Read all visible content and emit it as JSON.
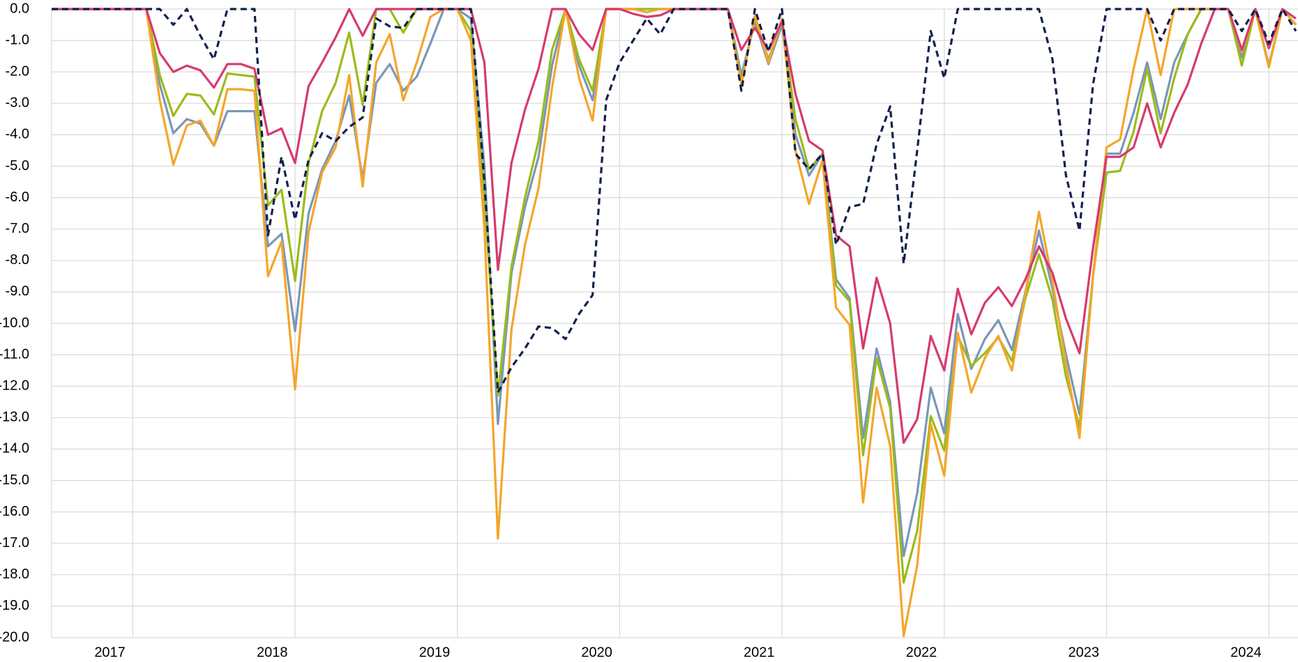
{
  "chart_data": {
    "type": "line",
    "categories": [
      null,
      null,
      null,
      null,
      "2017",
      null,
      null,
      null,
      null,
      null,
      null,
      null,
      null,
      null,
      null,
      null,
      "2018",
      null,
      null,
      null,
      null,
      null,
      null,
      null,
      null,
      null,
      null,
      null,
      "2019",
      null,
      null,
      null,
      null,
      null,
      null,
      null,
      null,
      null,
      null,
      null,
      "2020",
      null,
      null,
      null,
      null,
      null,
      null,
      null,
      null,
      null,
      null,
      null,
      "2021",
      null,
      null,
      null,
      null,
      null,
      null,
      null,
      null,
      null,
      null,
      null,
      "2022",
      null,
      null,
      null,
      null,
      null,
      null,
      null,
      null,
      null,
      null,
      null,
      "2023",
      null,
      null,
      null,
      null,
      null,
      null,
      null,
      null,
      null,
      null,
      null,
      "2024",
      null,
      null,
      null,
      null
    ],
    "ylim": [
      -20,
      0
    ],
    "yticks": [
      {
        "value": 0,
        "label": "0.0"
      },
      {
        "value": -1,
        "label": "-1.0"
      },
      {
        "value": -2,
        "label": "-2.0"
      },
      {
        "value": -3,
        "label": "-3.0"
      },
      {
        "value": -4,
        "label": "-4.0"
      },
      {
        "value": -5,
        "label": "-5.0"
      },
      {
        "value": -6,
        "label": "-6.0"
      },
      {
        "value": -7,
        "label": "-7.0"
      },
      {
        "value": -8,
        "label": "-8.0"
      },
      {
        "value": -9,
        "label": "-9.0"
      },
      {
        "value": -10,
        "label": "-10.0"
      },
      {
        "value": -11,
        "label": "-11.0"
      },
      {
        "value": -12,
        "label": "-12.0"
      },
      {
        "value": -13,
        "label": "-13.0"
      },
      {
        "value": -14,
        "label": "-14.0"
      },
      {
        "value": -15,
        "label": "-15.0"
      },
      {
        "value": -16,
        "label": "-16.0"
      },
      {
        "value": -17,
        "label": "-17.0"
      },
      {
        "value": -18,
        "label": "-18.0"
      },
      {
        "value": -19,
        "label": "-19.0"
      },
      {
        "value": -20,
        "label": "-20.0"
      }
    ],
    "grid": true,
    "series": [
      {
        "color": "#7b96b8",
        "dashed": false,
        "values": [
          0,
          0,
          0,
          0,
          0,
          0,
          0,
          0,
          -2.4,
          -3.95,
          -3.5,
          -3.65,
          -4.35,
          -3.25,
          -3.25,
          -3.25,
          -7.55,
          -7.15,
          -10.25,
          -6.5,
          -5.1,
          -4.2,
          -2.75,
          -5.4,
          -2.35,
          -1.75,
          -2.6,
          -2.15,
          -1.1,
          0,
          0,
          -0.3,
          -5,
          -13.2,
          -8.4,
          -6.3,
          -4.7,
          -1.8,
          0,
          -1.8,
          -2.9,
          0,
          0,
          0,
          0,
          0,
          0,
          0,
          0,
          0,
          0,
          -2.1,
          -0.4,
          -1.75,
          -0.5,
          -4,
          -5.3,
          -4.6,
          -8.6,
          -9.2,
          -13.65,
          -10.8,
          -12.5,
          -17.4,
          -15.4,
          -12.05,
          -13.5,
          -9.7,
          -11.45,
          -10.5,
          -9.9,
          -10.85,
          -9,
          -7.05,
          -8.9,
          -11,
          -12.9,
          -8.5,
          -4.6,
          -4.6,
          -3.3,
          -1.7,
          -3.5,
          -1.7,
          -0.8,
          0,
          0,
          0,
          -1.55,
          0,
          -1.8,
          0,
          -0.5
        ]
      },
      {
        "color": "#9bbb1a",
        "dashed": false,
        "values": [
          0,
          0,
          0,
          0,
          0,
          0,
          0,
          0,
          -2.1,
          -3.4,
          -2.7,
          -2.75,
          -3.35,
          -2.05,
          -2.1,
          -2.15,
          -6.25,
          -5.75,
          -8.65,
          -4.9,
          -3.25,
          -2.35,
          -0.75,
          -3.05,
          0,
          0,
          -0.75,
          0,
          0,
          0,
          0,
          -0.7,
          -6,
          -12.3,
          -8.2,
          -6,
          -4.2,
          -1.3,
          0,
          -1.6,
          -2.6,
          0,
          0,
          0,
          0,
          0,
          0,
          0,
          0,
          0,
          0,
          -2.3,
          -0.3,
          -1.6,
          -0.4,
          -3.5,
          -5.1,
          -4.6,
          -8.8,
          -9.3,
          -14.2,
          -11.1,
          -12.7,
          -18.25,
          -16.6,
          -12.95,
          -14.05,
          -10.4,
          -11.35,
          -10.95,
          -10.45,
          -11.2,
          -9.2,
          -7.8,
          -9.25,
          -11.7,
          -13.3,
          -8.5,
          -5.2,
          -5.15,
          -3.9,
          -1.9,
          -3.95,
          -2.2,
          -0.8,
          0,
          0,
          0,
          -1.8,
          0,
          -1.85,
          0,
          -0.5
        ]
      },
      {
        "color": "#f5a52a",
        "dashed": false,
        "values": [
          0,
          0,
          0,
          0,
          0,
          0,
          0,
          0,
          -2.9,
          -4.95,
          -3.7,
          -3.55,
          -4.35,
          -2.55,
          -2.55,
          -2.6,
          -8.5,
          -7.4,
          -12.1,
          -7.1,
          -5.2,
          -4.4,
          -2.1,
          -5.65,
          -1.7,
          -0.8,
          -2.9,
          -1.7,
          -0.25,
          0,
          0,
          -1,
          -7,
          -16.85,
          -10.2,
          -7.5,
          -5.7,
          -2.5,
          0,
          -2.2,
          -3.55,
          0,
          0,
          0,
          -0.1,
          0,
          0,
          0,
          0,
          0,
          0,
          -2.4,
          -0.2,
          -1.7,
          -0.3,
          -4.5,
          -6.2,
          -4.8,
          -9.5,
          -10.05,
          -15.7,
          -12.05,
          -13.9,
          -19.95,
          -17.7,
          -13.2,
          -14.85,
          -10.3,
          -12.2,
          -11.1,
          -10.4,
          -11.5,
          -9.05,
          -6.45,
          -8.65,
          -11.3,
          -13.65,
          -8.5,
          -4.4,
          -4.15,
          -1.9,
          0,
          -2.1,
          0,
          0,
          0,
          0,
          0,
          -1.35,
          -0.05,
          -1.85,
          0,
          -0.5
        ]
      },
      {
        "color": "#d63a6e",
        "dashed": false,
        "values": [
          0,
          0,
          0,
          0,
          0,
          0,
          0,
          0,
          -1.4,
          -2,
          -1.8,
          -1.95,
          -2.5,
          -1.75,
          -1.75,
          -1.9,
          -4,
          -3.8,
          -4.9,
          -2.45,
          -1.7,
          -0.9,
          0,
          -0.85,
          0,
          0,
          0,
          0,
          0,
          0,
          0,
          0,
          -1.7,
          -8.3,
          -4.9,
          -3.2,
          -1.9,
          0,
          0,
          -0.8,
          -1.3,
          0,
          0,
          -0.15,
          -0.25,
          -0.2,
          0,
          0,
          0,
          0,
          0,
          -1.3,
          -0.6,
          -1.3,
          -0.4,
          -2.7,
          -4.2,
          -4.5,
          -7.2,
          -7.55,
          -10.8,
          -8.55,
          -10,
          -13.8,
          -13.05,
          -10.4,
          -11.5,
          -8.9,
          -10.35,
          -9.35,
          -8.85,
          -9.45,
          -8.6,
          -7.55,
          -8.4,
          -9.85,
          -10.95,
          -7.6,
          -4.7,
          -4.7,
          -4.4,
          -3,
          -4.4,
          -3.3,
          -2.4,
          -1.1,
          0,
          0,
          -1.3,
          0,
          -1.25,
          0,
          -0.3
        ]
      },
      {
        "color": "#10204f",
        "dashed": true,
        "values": [
          0,
          0,
          0,
          0,
          0,
          0,
          0,
          0,
          0,
          -0.5,
          0,
          -0.85,
          -1.6,
          0,
          0,
          0,
          -7.2,
          -4.7,
          -6.7,
          -4.8,
          -3.95,
          -4.2,
          -3.75,
          -3.45,
          -0.3,
          -0.55,
          -0.6,
          0,
          0,
          0,
          0,
          0,
          -5.5,
          -12.2,
          -11.4,
          -10.8,
          -10.1,
          -10.15,
          -10.5,
          -9.7,
          -9.1,
          -2.9,
          -1.7,
          -1,
          -0.3,
          -0.8,
          0,
          0,
          0,
          0,
          0,
          -2.6,
          0,
          -1.35,
          0,
          -4.6,
          -5.1,
          -4.6,
          -7.5,
          -6.3,
          -6.2,
          -4.3,
          -3.1,
          -8.1,
          -4.5,
          -0.7,
          -2.2,
          0,
          0,
          0,
          0,
          0,
          0,
          0,
          -1.6,
          -5.3,
          -7.05,
          -2.4,
          0,
          0,
          0,
          0,
          -1,
          0,
          0,
          0,
          0,
          0,
          -0.7,
          0,
          -1.1,
          0,
          -0.7
        ]
      }
    ]
  }
}
